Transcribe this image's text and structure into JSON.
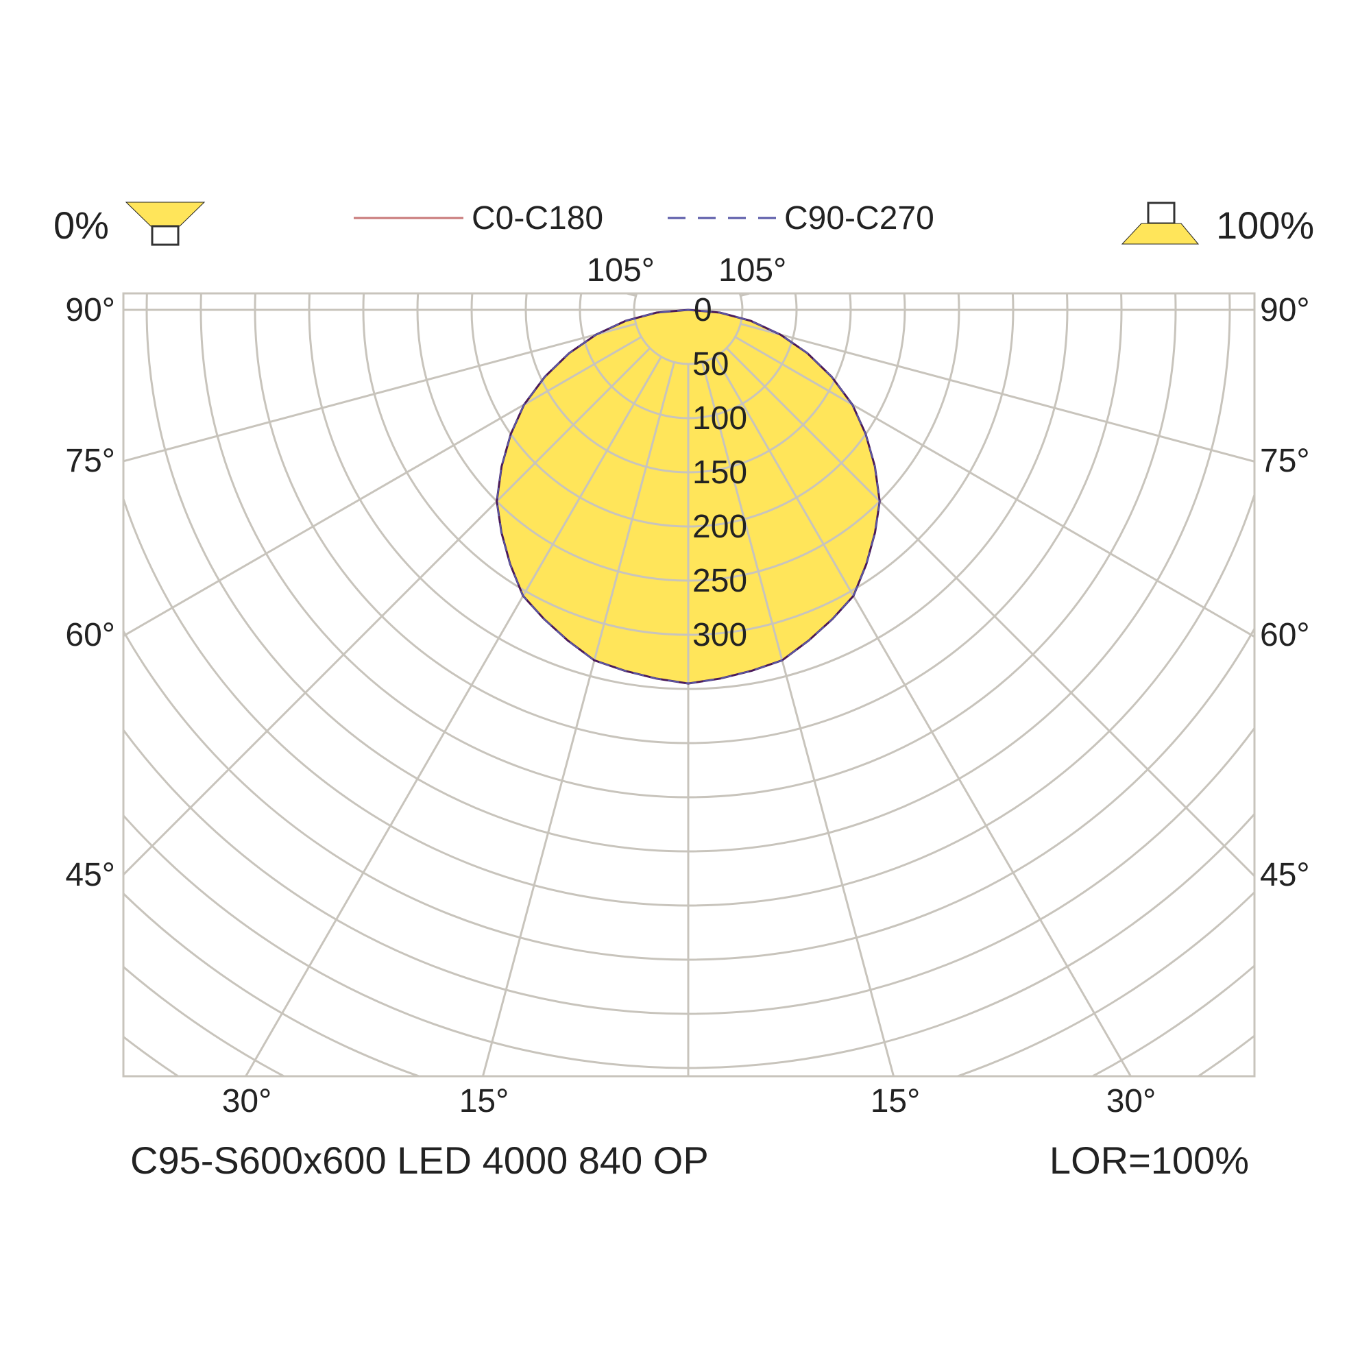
{
  "header": {
    "left_percent": "0%",
    "right_percent": "100%"
  },
  "legend": {
    "items": [
      {
        "label": "C0-C180",
        "color": "#c87878",
        "dash": "solid"
      },
      {
        "label": "C90-C270",
        "color": "#5a5aa8",
        "dash": "dashed"
      }
    ]
  },
  "footer": {
    "product": "C95-S600x600 LED 4000 840 OP",
    "lor": "LOR=100%"
  },
  "colors": {
    "fill": "#ffe55a",
    "outline": "#4a1a5a",
    "grid": "#c8c4bc"
  },
  "chart_data": {
    "type": "polar-luminous-intensity",
    "radial_ticks": [
      0,
      50,
      100,
      150,
      200,
      250,
      300
    ],
    "radial_tick_labels": [
      "0",
      "50",
      "100",
      "150",
      "200",
      "250",
      "300"
    ],
    "angle_labels": {
      "top": [
        "105°",
        "105°"
      ],
      "left": [
        "90°",
        "75°",
        "60°",
        "45°"
      ],
      "right": [
        "90°",
        "75°",
        "60°",
        "45°"
      ],
      "bottom": [
        "30°",
        "15°",
        "15°",
        "30°"
      ]
    },
    "series": [
      {
        "name": "C0-C180",
        "angles_deg": [
          0,
          15,
          30,
          45,
          60,
          75,
          90
        ],
        "intensity": [
          345,
          335,
          305,
          250,
          175,
          88,
          0
        ]
      },
      {
        "name": "C90-C270",
        "angles_deg": [
          0,
          15,
          30,
          45,
          60,
          75,
          90
        ],
        "intensity": [
          345,
          335,
          305,
          250,
          175,
          88,
          0
        ]
      }
    ]
  }
}
